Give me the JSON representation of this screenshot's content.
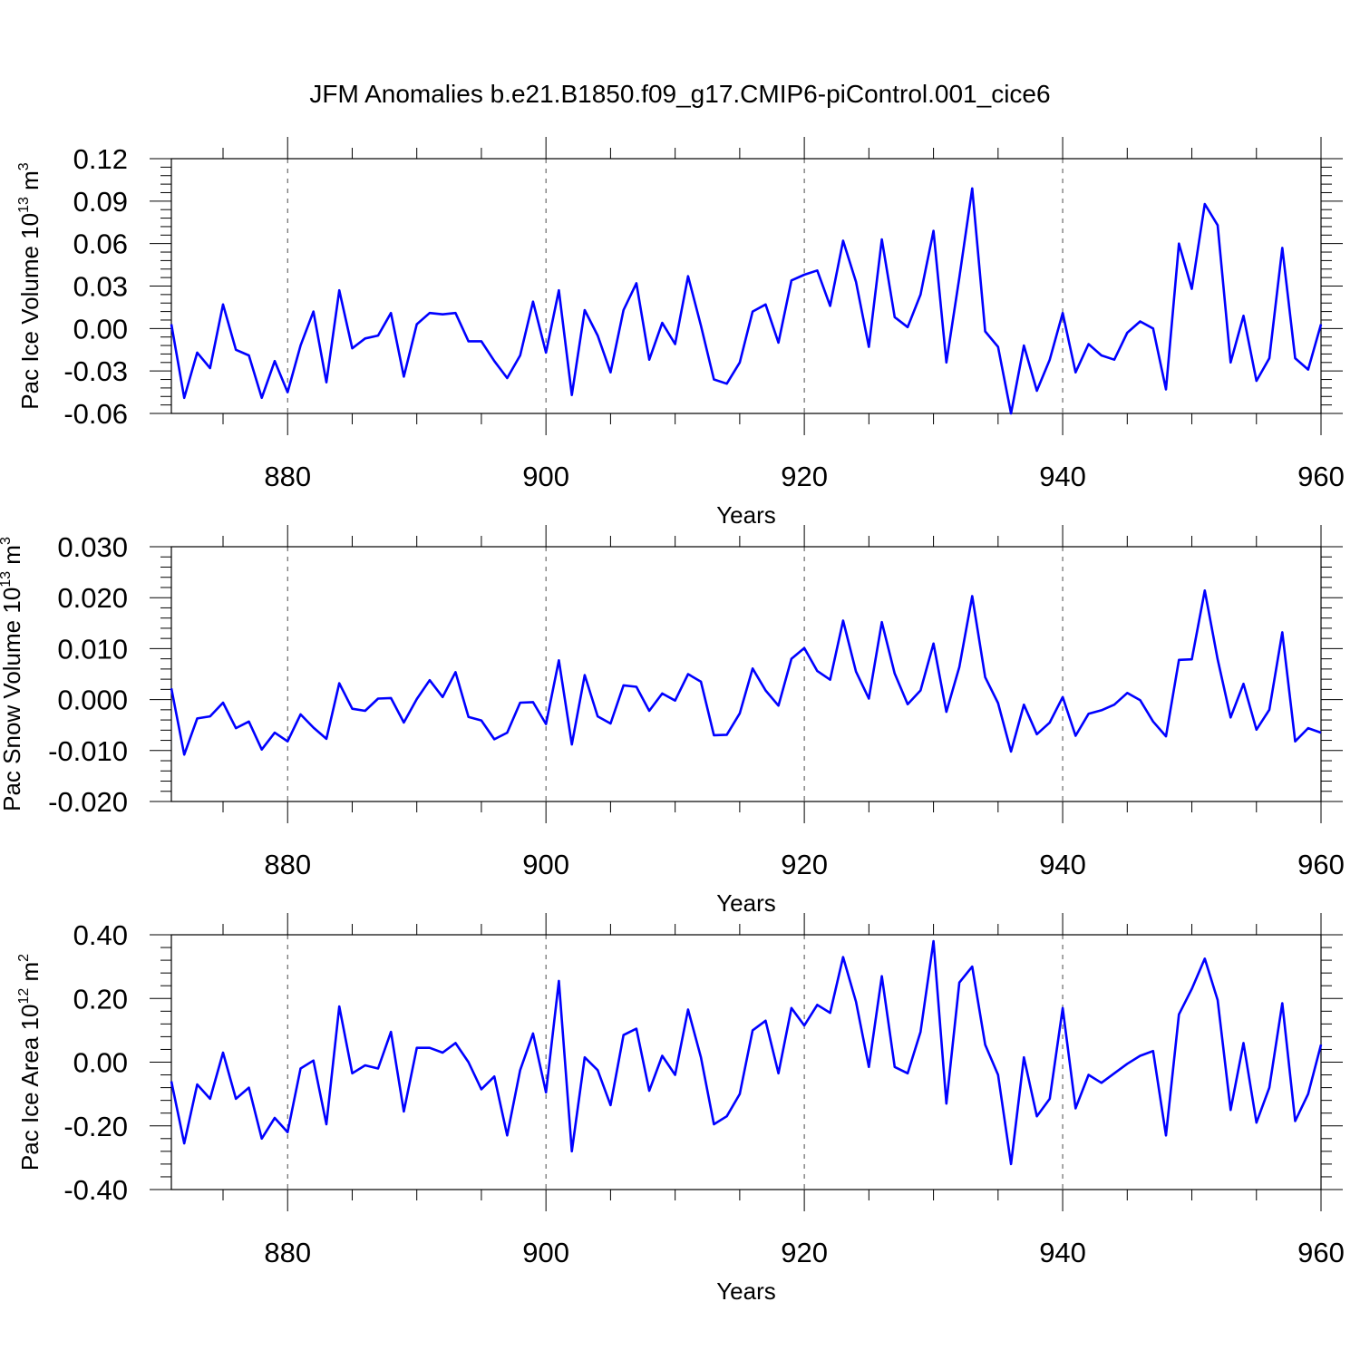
{
  "title": "JFM Anomalies b.e21.B1850.f09_g17.CMIP6-piControl.001_cice6",
  "colors": {
    "series": "#0000ff",
    "axis": "#000000",
    "grid": "#000000",
    "background": "#ffffff"
  },
  "chart_data": [
    {
      "type": "line",
      "ylabel": {
        "text": "Pac Ice Volume 10",
        "exp": "13",
        "unit": " m",
        "unit_exp": "3"
      },
      "xlabel": "Years",
      "xlim": [
        871,
        960
      ],
      "ylim": [
        -0.06,
        0.12
      ],
      "yticks": [
        -0.06,
        -0.03,
        0.0,
        0.03,
        0.06,
        0.09,
        0.12
      ],
      "ytick_labels": [
        "-0.06",
        "-0.03",
        "0.00",
        "0.03",
        "0.06",
        "0.09",
        "0.12"
      ],
      "xticks": [
        880,
        900,
        920,
        940,
        960
      ],
      "xtick_labels": [
        "880",
        "900",
        "920",
        "940",
        "960"
      ],
      "grid": "vertical dashed at major x ticks",
      "x": [
        871,
        872,
        873,
        874,
        875,
        876,
        877,
        878,
        879,
        880,
        881,
        882,
        883,
        884,
        885,
        886,
        887,
        888,
        889,
        890,
        891,
        892,
        893,
        894,
        895,
        896,
        897,
        898,
        899,
        900,
        901,
        902,
        903,
        904,
        905,
        906,
        907,
        908,
        909,
        910,
        911,
        912,
        913,
        914,
        915,
        916,
        917,
        918,
        919,
        920,
        921,
        922,
        923,
        924,
        925,
        926,
        927,
        928,
        929,
        930,
        931,
        932,
        933,
        934,
        935,
        936,
        937,
        938,
        939,
        940,
        941,
        942,
        943,
        944,
        945,
        946,
        947,
        948,
        949,
        950,
        951,
        952,
        953,
        954,
        955,
        956,
        957,
        958,
        959,
        960
      ],
      "values": [
        0.003,
        -0.049,
        -0.017,
        -0.028,
        0.017,
        -0.015,
        -0.019,
        -0.049,
        -0.023,
        -0.045,
        -0.012,
        0.012,
        -0.038,
        0.027,
        -0.014,
        -0.007,
        -0.005,
        0.011,
        -0.034,
        0.003,
        0.011,
        0.01,
        0.011,
        -0.009,
        -0.009,
        -0.023,
        -0.035,
        -0.019,
        0.019,
        -0.017,
        0.027,
        -0.047,
        0.013,
        -0.005,
        -0.031,
        0.013,
        0.032,
        -0.022,
        0.004,
        -0.011,
        0.037,
        0.002,
        -0.036,
        -0.039,
        -0.024,
        0.012,
        0.017,
        -0.01,
        0.034,
        0.038,
        0.041,
        0.016,
        0.062,
        0.033,
        -0.013,
        0.063,
        0.008,
        0.001,
        0.024,
        0.069,
        -0.024,
        0.036,
        0.099,
        -0.002,
        -0.013,
        -0.06,
        -0.012,
        -0.044,
        -0.022,
        0.011,
        -0.031,
        -0.011,
        -0.019,
        -0.022,
        -0.003,
        0.005,
        0.0,
        -0.043,
        0.06,
        0.028,
        0.088,
        0.073,
        -0.024,
        0.009,
        -0.037,
        -0.021,
        0.057,
        -0.021,
        -0.029,
        0.003
      ]
    },
    {
      "type": "line",
      "ylabel": {
        "text": "Pac Snow Volume 10",
        "exp": "13",
        "unit": " m",
        "unit_exp": "3"
      },
      "xlabel": "Years",
      "xlim": [
        871,
        960
      ],
      "ylim": [
        -0.02,
        0.03
      ],
      "yticks": [
        -0.02,
        -0.01,
        0.0,
        0.01,
        0.02,
        0.03
      ],
      "ytick_labels": [
        "-0.020",
        "-0.010",
        "0.000",
        "0.010",
        "0.020",
        "0.030"
      ],
      "xticks": [
        880,
        900,
        920,
        940,
        960
      ],
      "xtick_labels": [
        "880",
        "900",
        "920",
        "940",
        "960"
      ],
      "grid": "vertical dashed at major x ticks",
      "x": [
        871,
        872,
        873,
        874,
        875,
        876,
        877,
        878,
        879,
        880,
        881,
        882,
        883,
        884,
        885,
        886,
        887,
        888,
        889,
        890,
        891,
        892,
        893,
        894,
        895,
        896,
        897,
        898,
        899,
        900,
        901,
        902,
        903,
        904,
        905,
        906,
        907,
        908,
        909,
        910,
        911,
        912,
        913,
        914,
        915,
        916,
        917,
        918,
        919,
        920,
        921,
        922,
        923,
        924,
        925,
        926,
        927,
        928,
        929,
        930,
        931,
        932,
        933,
        934,
        935,
        936,
        937,
        938,
        939,
        940,
        941,
        942,
        943,
        944,
        945,
        946,
        947,
        948,
        949,
        950,
        951,
        952,
        953,
        954,
        955,
        956,
        957,
        958,
        959,
        960
      ],
      "values": [
        0.0022,
        -0.0108,
        -0.0037,
        -0.0033,
        -0.0006,
        -0.0056,
        -0.0043,
        -0.0098,
        -0.0065,
        -0.0082,
        -0.0029,
        -0.0055,
        -0.0077,
        0.0032,
        -0.0018,
        -0.0022,
        0.0002,
        0.0003,
        -0.0045,
        0.0001,
        0.0038,
        0.0005,
        0.0054,
        -0.0034,
        -0.0041,
        -0.0078,
        -0.0065,
        -0.0006,
        -0.0005,
        -0.0048,
        0.0077,
        -0.0088,
        0.0048,
        -0.0033,
        -0.0047,
        0.0028,
        0.0025,
        -0.0022,
        0.0012,
        -0.0002,
        0.005,
        0.0035,
        -0.007,
        -0.0069,
        -0.0027,
        0.0061,
        0.0018,
        -0.0012,
        0.008,
        0.0101,
        0.0056,
        0.0039,
        0.0155,
        0.0055,
        0.0002,
        0.0152,
        0.0051,
        -0.0009,
        0.0018,
        0.011,
        -0.0024,
        0.0064,
        0.0203,
        0.0044,
        -0.0007,
        -0.0102,
        -0.001,
        -0.0068,
        -0.0045,
        0.0005,
        -0.0071,
        -0.0028,
        -0.0021,
        -0.001,
        0.0013,
        -0.0001,
        -0.0043,
        -0.0072,
        0.0078,
        0.0079,
        0.0214,
        0.0079,
        -0.0035,
        0.0031,
        -0.0059,
        -0.002,
        0.0132,
        -0.0082,
        -0.0056,
        -0.0065
      ]
    },
    {
      "type": "line",
      "ylabel": {
        "text": "Pac Ice Area 10",
        "exp": "12",
        "unit": " m",
        "unit_exp": "2"
      },
      "xlabel": "Years",
      "xlim": [
        871,
        960
      ],
      "ylim": [
        -0.4,
        0.4
      ],
      "yticks": [
        -0.4,
        -0.2,
        0.0,
        0.2,
        0.4
      ],
      "ytick_labels": [
        "-0.40",
        "-0.20",
        "0.00",
        "0.20",
        "0.40"
      ],
      "xticks": [
        880,
        900,
        920,
        940,
        960
      ],
      "xtick_labels": [
        "880",
        "900",
        "920",
        "940",
        "960"
      ],
      "grid": "vertical dashed at major x ticks",
      "x": [
        871,
        872,
        873,
        874,
        875,
        876,
        877,
        878,
        879,
        880,
        881,
        882,
        883,
        884,
        885,
        886,
        887,
        888,
        889,
        890,
        891,
        892,
        893,
        894,
        895,
        896,
        897,
        898,
        899,
        900,
        901,
        902,
        903,
        904,
        905,
        906,
        907,
        908,
        909,
        910,
        911,
        912,
        913,
        914,
        915,
        916,
        917,
        918,
        919,
        920,
        921,
        922,
        923,
        924,
        925,
        926,
        927,
        928,
        929,
        930,
        931,
        932,
        933,
        934,
        935,
        936,
        937,
        938,
        939,
        940,
        941,
        942,
        943,
        944,
        945,
        946,
        947,
        948,
        949,
        950,
        951,
        952,
        953,
        954,
        955,
        956,
        957,
        958,
        959,
        960
      ],
      "values": [
        -0.06,
        -0.255,
        -0.07,
        -0.115,
        0.03,
        -0.115,
        -0.08,
        -0.24,
        -0.175,
        -0.22,
        -0.02,
        0.005,
        -0.195,
        0.175,
        -0.035,
        -0.01,
        -0.02,
        0.095,
        -0.155,
        0.045,
        0.045,
        0.03,
        0.06,
        0.0,
        -0.085,
        -0.045,
        -0.23,
        -0.025,
        0.09,
        -0.095,
        0.255,
        -0.28,
        0.015,
        -0.025,
        -0.135,
        0.085,
        0.105,
        -0.09,
        0.02,
        -0.04,
        0.165,
        0.015,
        -0.195,
        -0.17,
        -0.1,
        0.1,
        0.13,
        -0.035,
        0.17,
        0.115,
        0.18,
        0.155,
        0.33,
        0.19,
        -0.015,
        0.27,
        -0.015,
        -0.035,
        0.095,
        0.38,
        -0.13,
        0.25,
        0.3,
        0.055,
        -0.04,
        -0.32,
        0.015,
        -0.17,
        -0.115,
        0.17,
        -0.145,
        -0.04,
        -0.065,
        -0.035,
        -0.005,
        0.02,
        0.035,
        -0.23,
        0.15,
        0.23,
        0.325,
        0.195,
        -0.15,
        0.06,
        -0.19,
        -0.08,
        0.185,
        -0.185,
        -0.1,
        0.055
      ]
    }
  ]
}
